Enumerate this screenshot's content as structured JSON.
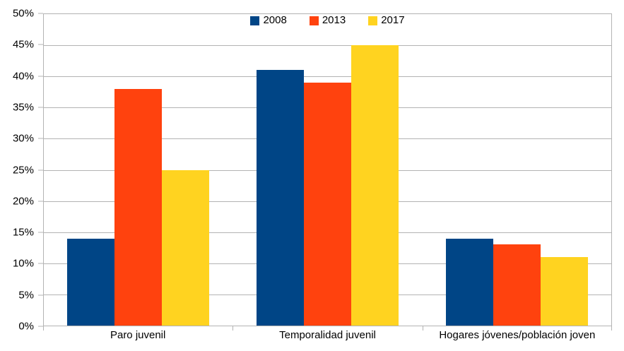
{
  "chart_data": {
    "type": "bar",
    "title": "",
    "categories": [
      "Paro juvenil",
      "Temporalidad juvenil",
      "Hogares jóvenes/población joven"
    ],
    "series": [
      {
        "name": "2008",
        "color": "#004586",
        "values": [
          14,
          41,
          14
        ]
      },
      {
        "name": "2013",
        "color": "#FF420E",
        "values": [
          38,
          39,
          13
        ]
      },
      {
        "name": "2017",
        "color": "#FFD320",
        "values": [
          25,
          45,
          11
        ]
      }
    ],
    "xlabel": "",
    "ylabel": "",
    "ylim": [
      0,
      50
    ],
    "y_ticks": [
      "0%",
      "5%",
      "10%",
      "15%",
      "20%",
      "25%",
      "30%",
      "35%",
      "40%",
      "45%",
      "50%"
    ],
    "grid": "horizontal",
    "legend_position": "top-center",
    "gridline_color": "#b3b3b3",
    "background_color": "#ffffff",
    "text_color": "#000000"
  }
}
